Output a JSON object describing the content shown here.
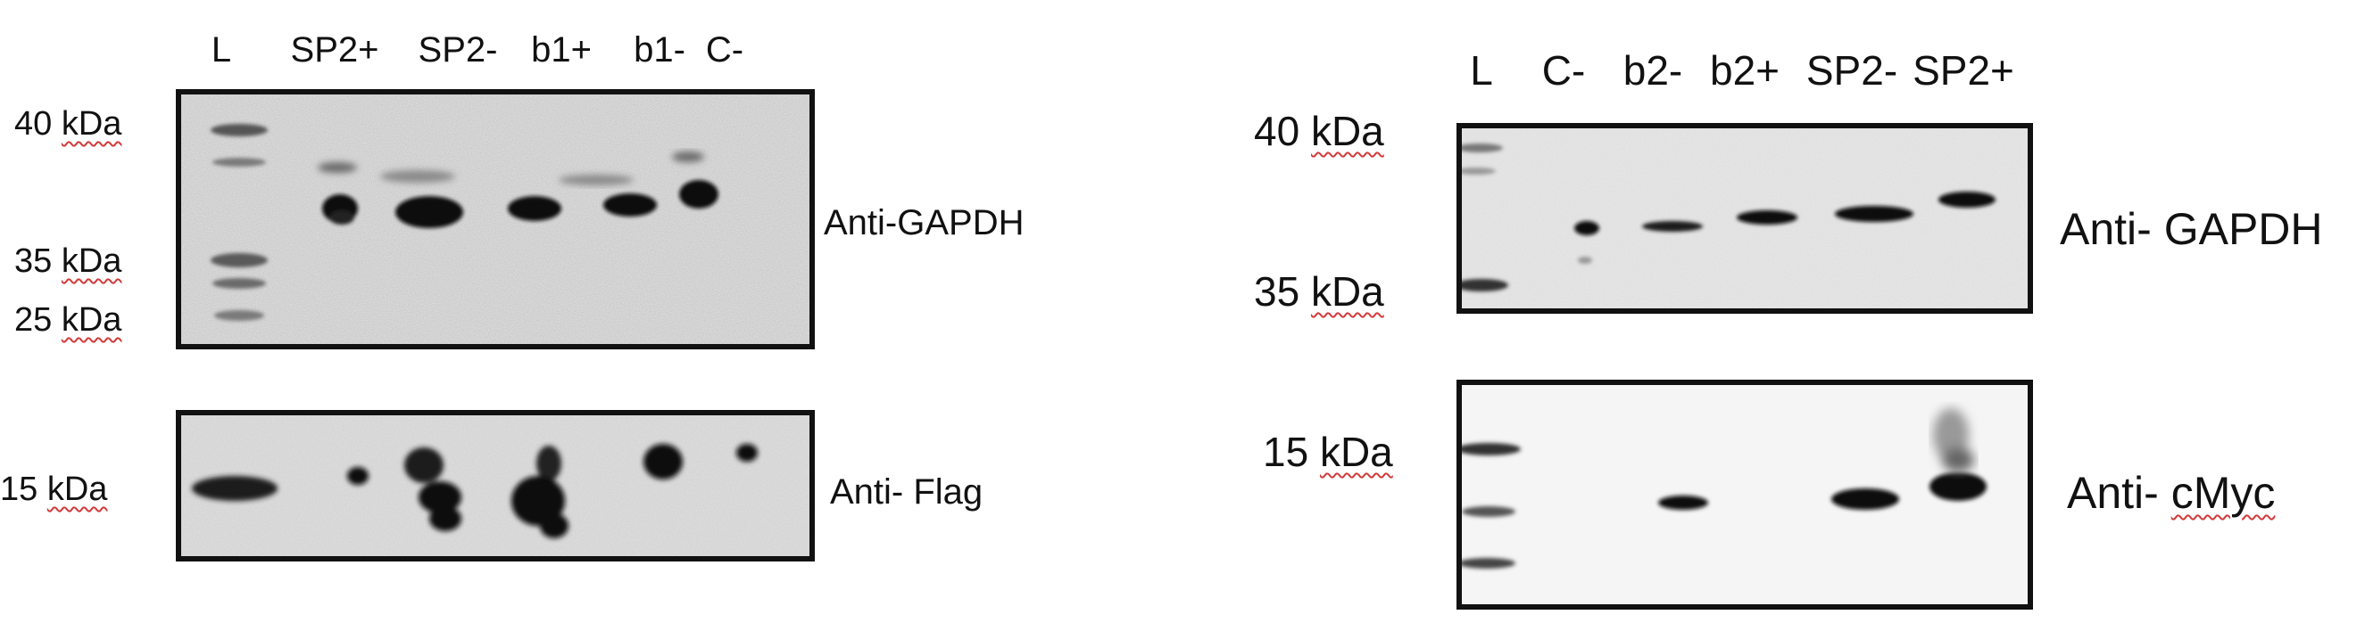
{
  "left_panel": {
    "lanes": [
      "L",
      "SP2+",
      "SP2-",
      "b1+",
      "b1-",
      "C-"
    ],
    "gapdh_blot": {
      "markers": [
        {
          "value": "40",
          "unit": "kDa"
        },
        {
          "value": "35",
          "unit": "kDa"
        },
        {
          "value": "25",
          "unit": "kDa"
        }
      ],
      "antibody": "Anti-GAPDH"
    },
    "flag_blot": {
      "markers": [
        {
          "value": "15",
          "unit": "kDa"
        }
      ],
      "antibody": "Anti- Flag"
    }
  },
  "right_panel": {
    "lanes": [
      "L",
      "C-",
      "b2-",
      "b2+",
      "SP2-",
      "SP2+"
    ],
    "gapdh_blot": {
      "markers": [
        {
          "value": "40",
          "unit": "kDa"
        },
        {
          "value": "35",
          "unit": "kDa"
        }
      ],
      "antibody_prefix": "Anti- ",
      "antibody_name": "GAPDH"
    },
    "cmyc_blot": {
      "markers": [
        {
          "value": "15",
          "unit": "kDa"
        }
      ],
      "antibody_prefix": "Anti- ",
      "antibody_name": "cMyc"
    }
  },
  "colors": {
    "band": "#111111",
    "membrane_gray": "#e9e9e9",
    "membrane_light": "#f6f6f6",
    "spellcheck_underline": "#d33a3a"
  }
}
